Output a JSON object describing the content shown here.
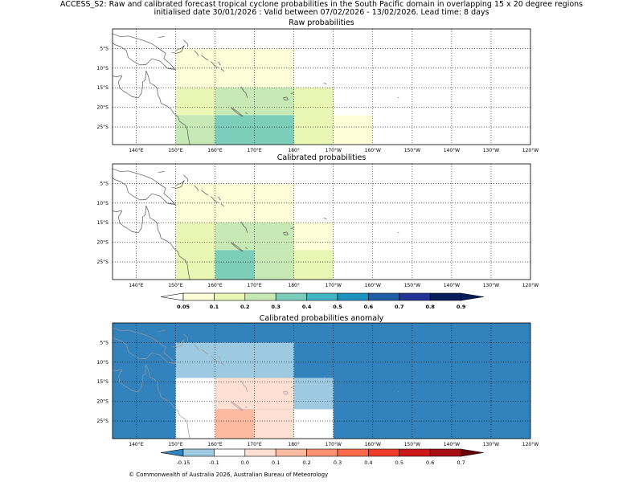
{
  "header": {
    "line1": "ACCESS_S2: Raw and calibrated forecast tropical cyclone probabilities in the South Pacific domain in overlapping 15 x 20 degree regions",
    "line2": "initialised date 30/01/2026 :  Valid between 07/02/2026 - 13/02/2026. Lead time: 8 days"
  },
  "panels": [
    {
      "title": "Raw probabilities",
      "cells": [
        {
          "lon": [
            150,
            180
          ],
          "lat": [
            -5,
            -15
          ],
          "color": "#fdfdd8"
        },
        {
          "lon": [
            150,
            160
          ],
          "lat": [
            -15,
            -22
          ],
          "color": "#eaf7b4"
        },
        {
          "lon": [
            160,
            180
          ],
          "lat": [
            -15,
            -22
          ],
          "color": "#c7e9b5"
        },
        {
          "lon": [
            180,
            190
          ],
          "lat": [
            -15,
            -30
          ],
          "color": "#eaf7b4"
        },
        {
          "lon": [
            150,
            160
          ],
          "lat": [
            -22,
            -30
          ],
          "color": "#c7e9b5"
        },
        {
          "lon": [
            160,
            180
          ],
          "lat": [
            -22,
            -30
          ],
          "color": "#7dcdbb"
        },
        {
          "lon": [
            190,
            200
          ],
          "lat": [
            -22,
            -30
          ],
          "color": "#fdfdd8"
        }
      ]
    },
    {
      "title": "Calibrated probabilities",
      "cells": [
        {
          "lon": [
            150,
            180
          ],
          "lat": [
            -5,
            -15
          ],
          "color": "#fdfdd8"
        },
        {
          "lon": [
            150,
            160
          ],
          "lat": [
            -15,
            -30
          ],
          "color": "#eaf7b4"
        },
        {
          "lon": [
            160,
            180
          ],
          "lat": [
            -15,
            -22
          ],
          "color": "#c7e9b5"
        },
        {
          "lon": [
            180,
            190
          ],
          "lat": [
            -15,
            -22
          ],
          "color": "#fdfdd8"
        },
        {
          "lon": [
            160,
            170
          ],
          "lat": [
            -22,
            -30
          ],
          "color": "#7dcdbb"
        },
        {
          "lon": [
            170,
            180
          ],
          "lat": [
            -22,
            -30
          ],
          "color": "#c7e9b5"
        },
        {
          "lon": [
            180,
            190
          ],
          "lat": [
            -22,
            -30
          ],
          "color": "#eaf7b4"
        }
      ]
    },
    {
      "title": "Calibrated probabilities anomaly",
      "background": "#3182bd",
      "cells": [
        {
          "lon": [
            150,
            180
          ],
          "lat": [
            -5,
            -14
          ],
          "color": "#9ecae1"
        },
        {
          "lon": [
            150,
            160
          ],
          "lat": [
            -14,
            -30
          ],
          "color": "#ffffff"
        },
        {
          "lon": [
            160,
            180
          ],
          "lat": [
            -14,
            -22
          ],
          "color": "#fee0d2"
        },
        {
          "lon": [
            180,
            190
          ],
          "lat": [
            -14,
            -22
          ],
          "color": "#9ecae1"
        },
        {
          "lon": [
            180,
            190
          ],
          "lat": [
            -22,
            -30
          ],
          "color": "#ffffff"
        },
        {
          "lon": [
            160,
            170
          ],
          "lat": [
            -22,
            -30
          ],
          "color": "#fcbba1"
        },
        {
          "lon": [
            170,
            180
          ],
          "lat": [
            -22,
            -30
          ],
          "color": "#fee0d2"
        }
      ]
    }
  ],
  "axes": {
    "lat_labels": [
      "5°S",
      "10°S",
      "15°S",
      "20°S",
      "25°S"
    ],
    "lon_labels": [
      "140°E",
      "150°E",
      "160°E",
      "170°E",
      "180°",
      "170°W",
      "160°W",
      "150°W",
      "140°W",
      "130°W",
      "120°W"
    ]
  },
  "colorbars": [
    {
      "labels": [
        "0.05",
        "0.1",
        "0.2",
        "0.3",
        "0.4",
        "0.5",
        "0.6",
        "0.7",
        "0.8",
        "0.9"
      ],
      "colors": [
        "#ffffff",
        "#fdfdd8",
        "#eaf7b4",
        "#c7e9b5",
        "#7dcdbb",
        "#41b6c4",
        "#1d91c0",
        "#225ea8",
        "#253494",
        "#081d58",
        "#081d58"
      ]
    },
    {
      "labels": [
        "-0.15",
        "-0.1",
        "0.0",
        "0.1",
        "0.2",
        "0.3",
        "0.4",
        "0.5",
        "0.6",
        "0.7"
      ],
      "colors": [
        "#3182bd",
        "#9ecae1",
        "#ffffff",
        "#fee0d2",
        "#fcbba1",
        "#fc9272",
        "#fb6a4a",
        "#ef3b2c",
        "#cb181d",
        "#a50f15",
        "#67000d"
      ]
    }
  ],
  "footer": "© Commonwealth of Australia 2026, Australian Bureau of Meteorology"
}
